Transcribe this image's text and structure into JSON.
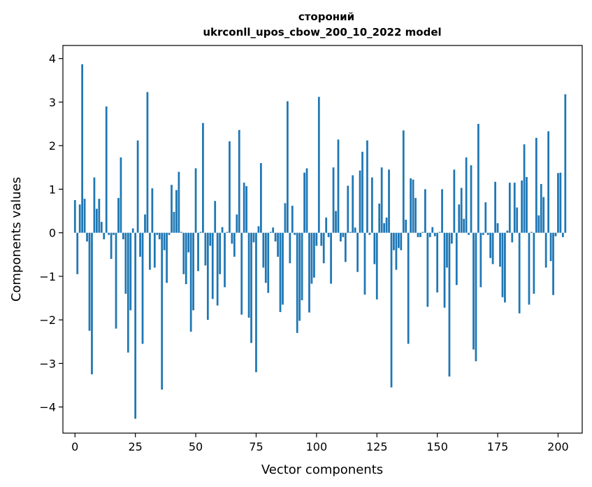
{
  "chart_data": {
    "type": "bar",
    "title": "стороний",
    "subtitle": "ukrconll_upos_cbow_200_10_2022 model",
    "xlabel": "Vector components",
    "ylabel": "Components values",
    "xlim": [
      -5,
      210
    ],
    "ylim": [
      -4.6,
      4.3
    ],
    "xticks": [
      0,
      25,
      50,
      75,
      100,
      125,
      150,
      175,
      200
    ],
    "yticks": [
      -4,
      -3,
      -2,
      -1,
      0,
      1,
      2,
      3,
      4
    ],
    "xtick_labels": [
      "0",
      "25",
      "50",
      "75",
      "100",
      "125",
      "150",
      "175",
      "200"
    ],
    "ytick_labels": [
      "−4",
      "−3",
      "−2",
      "−1",
      "0",
      "1",
      "2",
      "3",
      "4"
    ],
    "bar_color": "#1f77b4",
    "values": [
      0.75,
      -0.95,
      0.65,
      3.87,
      0.78,
      -0.2,
      -2.25,
      -3.25,
      1.27,
      0.55,
      0.78,
      0.25,
      -0.15,
      2.9,
      -0.05,
      -0.6,
      -0.05,
      -2.2,
      0.8,
      1.73,
      -0.15,
      -1.4,
      -2.75,
      -1.78,
      0.1,
      -4.27,
      2.12,
      -0.55,
      -2.55,
      0.42,
      3.23,
      -0.85,
      1.02,
      -0.8,
      -0.05,
      -0.15,
      -3.6,
      -0.4,
      -1.15,
      -0.05,
      1.1,
      0.48,
      0.98,
      1.4,
      0.02,
      -0.95,
      -1.18,
      -0.45,
      -2.27,
      -1.78,
      1.48,
      -0.88,
      0.02,
      2.52,
      -0.75,
      -2.0,
      -0.3,
      -1.52,
      0.73,
      -1.67,
      -0.95,
      0.13,
      -1.25,
      0.02,
      2.1,
      -0.25,
      -0.55,
      0.42,
      2.36,
      -1.88,
      1.15,
      1.07,
      -1.95,
      -2.53,
      -0.22,
      -3.2,
      0.15,
      1.6,
      -0.8,
      -1.15,
      -1.38,
      0.02,
      0.12,
      -0.2,
      -0.55,
      -1.82,
      -1.65,
      0.68,
      3.02,
      -0.7,
      0.62,
      -0.05,
      -2.3,
      -2.02,
      -1.55,
      1.38,
      1.48,
      -1.83,
      -1.17,
      -1.03,
      -0.3,
      3.12,
      -0.3,
      -0.7,
      0.35,
      -0.1,
      -1.17,
      1.5,
      0.5,
      2.14,
      -0.2,
      -0.1,
      -0.67,
      1.08,
      0.02,
      1.32,
      0.12,
      -0.9,
      1.43,
      1.86,
      -1.42,
      2.12,
      -0.05,
      1.27,
      -0.72,
      -1.53,
      0.67,
      1.5,
      0.22,
      0.35,
      1.45,
      -3.55,
      -0.4,
      -0.85,
      -0.35,
      -0.4,
      2.35,
      0.3,
      -2.55,
      1.25,
      1.22,
      0.8,
      -0.1,
      -0.1,
      0.02,
      1.0,
      -1.7,
      -0.1,
      0.13,
      -0.08,
      -1.37,
      0.02,
      1.0,
      -1.72,
      -0.8,
      -3.3,
      -0.25,
      1.45,
      -1.2,
      0.65,
      1.03,
      0.32,
      1.73,
      -0.05,
      1.55,
      -2.68,
      -2.95,
      2.5,
      -1.25,
      -0.05,
      0.7,
      -0.05,
      -0.58,
      -0.72,
      1.17,
      0.22,
      -0.78,
      -1.48,
      -1.6,
      0.05,
      1.15,
      -0.22,
      1.15,
      0.58,
      -1.85,
      1.2,
      2.03,
      1.28,
      -1.65,
      0.02,
      -1.4,
      2.18,
      0.4,
      1.12,
      0.82,
      -0.8,
      2.33,
      -0.65,
      -1.43,
      -0.08,
      1.37,
      1.38,
      -0.1,
      3.18
    ]
  }
}
